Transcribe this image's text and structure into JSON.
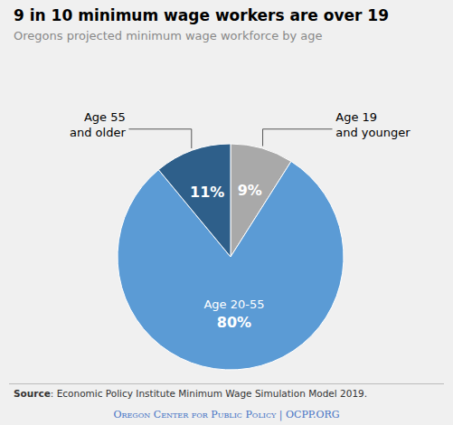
{
  "chart_data": {
    "type": "pie",
    "title": "9 in 10 minimum wage workers are over 19",
    "subtitle": "Oregons projected minimum wage workforce by age",
    "categories": [
      "Age 19\nand younger",
      "Age 20-55",
      "Age 55\nand older"
    ],
    "values": [
      9,
      80,
      11
    ],
    "value_labels": [
      "9%",
      "80%",
      "11%"
    ],
    "colors": [
      "#a9a9a9",
      "#5b9bd5",
      "#2e5f8a"
    ],
    "data_labels": true,
    "source": "Source: Economic Policy Institute Minimum Wage Simulation Model 2019.",
    "footer": "Oregon Center for Public Policy | OCPP.ORG",
    "footer_color": "#4472c4",
    "background_color": "#f0f0f0"
  }
}
